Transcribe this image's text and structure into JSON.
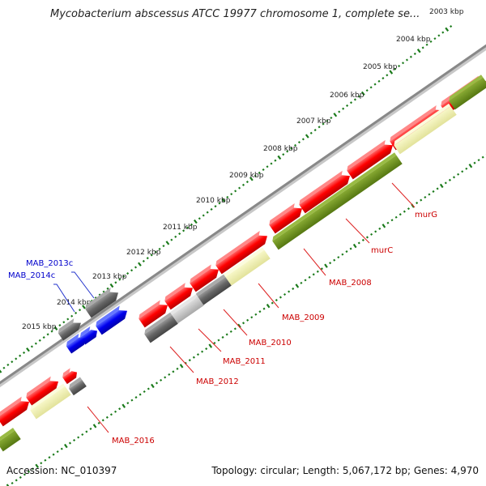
{
  "map": {
    "title": "Mycobacterium abscessus ATCC 19977 chromosome 1, complete se...",
    "accession_text": "Accession: NC_010397",
    "summary_text": "Topology: circular; Length: 5,067,172 bp; Genes: 4,970"
  },
  "ticks": [
    {
      "label": "2003 kbp"
    },
    {
      "label": "2004 kbp"
    },
    {
      "label": "2005 kbp"
    },
    {
      "label": "2006 kbp"
    },
    {
      "label": "2007 kbp"
    },
    {
      "label": "2008 kbp"
    },
    {
      "label": "2009 kbp"
    },
    {
      "label": "2010 kbp"
    },
    {
      "label": "2011 kbp"
    },
    {
      "label": "2012 kbp"
    },
    {
      "label": "2013 kbp"
    },
    {
      "label": "2014 kbp"
    },
    {
      "label": "2015 kbp"
    }
  ],
  "gene_labels": [
    {
      "label": "murG"
    },
    {
      "label": "murC"
    },
    {
      "label": "MAB_2008"
    },
    {
      "label": "MAB_2009"
    },
    {
      "label": "MAB_2010"
    },
    {
      "label": "MAB_2011"
    },
    {
      "label": "MAB_2012"
    },
    {
      "label": "MAB_2016"
    },
    {
      "label": "MAB_2013c"
    },
    {
      "label": "MAB_2014c"
    }
  ],
  "colors": {
    "gene_red": "#ff0000",
    "gene_gray": "#666666",
    "gene_light_gray": "#bbbbbb",
    "gene_blue": "#0000ee",
    "cds_green": "#668822",
    "rna_yellow": "#eeeeaa",
    "label_red": "#cc0000",
    "label_blue": "#0000cc",
    "tick_green": "#1a7a1a",
    "backbone": "#888888"
  }
}
